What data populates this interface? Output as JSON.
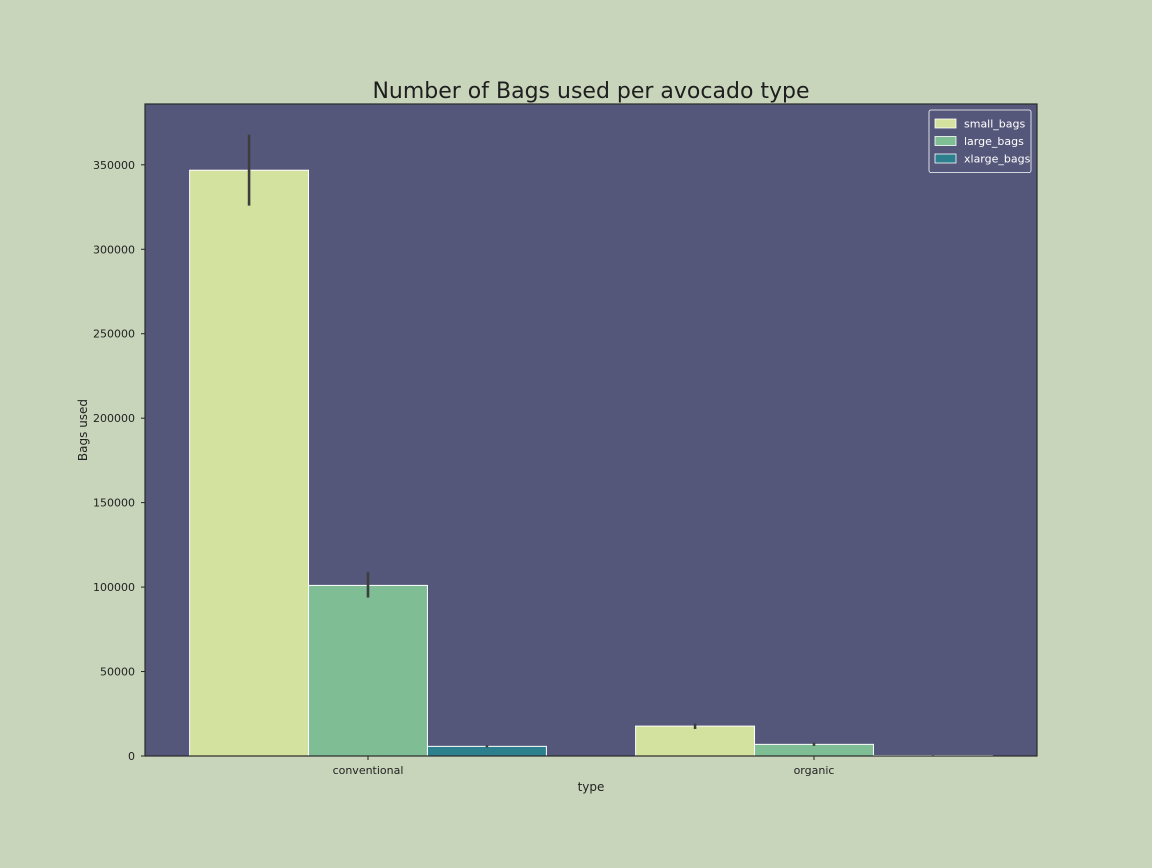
{
  "chart_data": {
    "type": "bar",
    "title": "Number of Bags used per avocado type",
    "xlabel": "type",
    "ylabel": "Bags used",
    "categories": [
      "conventional",
      "organic"
    ],
    "series": [
      {
        "name": "small_bags",
        "color": "#d4e29f",
        "values": [
          346800,
          17700
        ],
        "error_low": [
          325800,
          16000
        ],
        "error_high": [
          367800,
          19200
        ]
      },
      {
        "name": "large_bags",
        "color": "#7fbe95",
        "values": [
          101000,
          6900
        ],
        "error_low": [
          93800,
          6000
        ],
        "error_high": [
          108800,
          7800
        ]
      },
      {
        "name": "xlarge_bags",
        "color": "#2c7f8c",
        "values": [
          5700,
          300
        ],
        "error_low": [
          5100,
          150
        ],
        "error_high": [
          6300,
          450
        ]
      }
    ],
    "yticks": [
      0,
      50000,
      100000,
      150000,
      200000,
      250000,
      300000,
      350000
    ],
    "ylim": [
      0,
      386000
    ],
    "plot_background": "#55577a",
    "figure_background": "#c8d5bb",
    "legend_position": "top-right",
    "grid": false
  }
}
